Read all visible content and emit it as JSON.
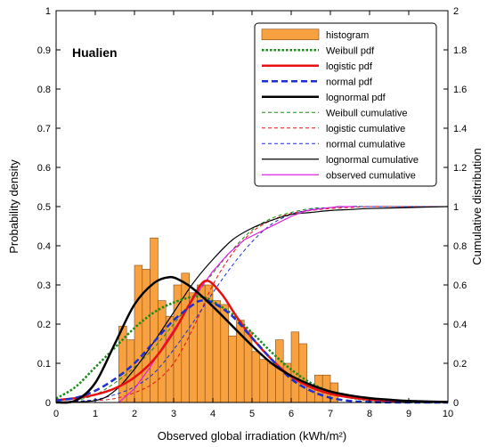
{
  "chart_data": {
    "type": "bar",
    "annotation": "Hualien",
    "xlabel": "Observed  global  irradiation (kWh/m²)",
    "ylabel_left": "Probability  density",
    "ylabel_right": "Cumulative  distribution",
    "xlim": [
      0,
      10
    ],
    "ylim_left": [
      0,
      1
    ],
    "ylim_right": [
      0,
      2
    ],
    "x_ticks": [
      "0",
      "1",
      "2",
      "3",
      "4",
      "5",
      "6",
      "7",
      "8",
      "9",
      "10"
    ],
    "y_ticks_left": [
      "0",
      "0.1",
      "0.2",
      "0.3",
      "0.4",
      "0.5",
      "0.6",
      "0.7",
      "0.8",
      "0.9",
      "1"
    ],
    "y_ticks_right": [
      "0",
      "0.2",
      "0.4",
      "0.6",
      "0.8",
      "1",
      "1.2",
      "1.4",
      "1.6",
      "1.8",
      "2"
    ],
    "grid": false,
    "legend_position": "top-right",
    "histogram": {
      "name": "histogram",
      "color": "#F7A140",
      "bin_width": 0.2,
      "bin_starts": [
        1.6,
        1.8,
        2.0,
        2.2,
        2.4,
        2.6,
        2.8,
        3.0,
        3.2,
        3.4,
        3.6,
        3.8,
        4.0,
        4.2,
        4.4,
        4.6,
        4.8,
        5.0,
        5.2,
        5.4,
        5.6,
        5.8,
        6.0,
        6.2,
        6.4,
        6.6,
        6.8,
        7.0
      ],
      "values": [
        0.195,
        0.16,
        0.35,
        0.34,
        0.42,
        0.26,
        0.22,
        0.3,
        0.33,
        0.28,
        0.3,
        0.3,
        0.26,
        0.25,
        0.17,
        0.21,
        0.18,
        0.13,
        0.11,
        0.1,
        0.16,
        0.1,
        0.18,
        0.15,
        0.04,
        0.07,
        0.07,
        0.05
      ]
    },
    "series": [
      {
        "name": "Weibull pdf",
        "axis": "left",
        "color": "#1A8A1A",
        "style": "dotted-thick",
        "x": [
          0,
          0.5,
          1,
          1.5,
          2,
          2.5,
          3,
          3.5,
          3.8,
          4,
          4.5,
          5,
          5.5,
          6,
          6.5,
          7,
          7.5,
          8,
          8.5,
          9,
          10
        ],
        "values": [
          0.01,
          0.04,
          0.09,
          0.14,
          0.19,
          0.23,
          0.255,
          0.27,
          0.268,
          0.258,
          0.225,
          0.178,
          0.128,
          0.084,
          0.05,
          0.027,
          0.013,
          0.006,
          0.002,
          0.001,
          0
        ]
      },
      {
        "name": "logistic pdf",
        "axis": "left",
        "color": "#E81010",
        "style": "solid-thick",
        "x": [
          0,
          0.5,
          1,
          1.5,
          2,
          2.5,
          3,
          3.4,
          3.8,
          4.2,
          4.6,
          5,
          5.5,
          6,
          6.5,
          7,
          7.5,
          8,
          8.5,
          9,
          10
        ],
        "values": [
          0.006,
          0.011,
          0.02,
          0.036,
          0.064,
          0.11,
          0.18,
          0.25,
          0.31,
          0.28,
          0.22,
          0.165,
          0.11,
          0.066,
          0.039,
          0.022,
          0.013,
          0.007,
          0.004,
          0.002,
          0.001
        ]
      },
      {
        "name": "normal pdf",
        "axis": "left",
        "color": "#1A2FD6",
        "style": "dashed-thick",
        "x": [
          0,
          0.5,
          1,
          1.5,
          2,
          2.5,
          3,
          3.5,
          3.7,
          4,
          4.5,
          5,
          5.5,
          6,
          6.5,
          7,
          7.5,
          8,
          9,
          10
        ],
        "values": [
          0.005,
          0.012,
          0.03,
          0.06,
          0.1,
          0.155,
          0.21,
          0.25,
          0.26,
          0.255,
          0.22,
          0.165,
          0.11,
          0.06,
          0.03,
          0.012,
          0.004,
          0.001,
          0,
          0
        ]
      },
      {
        "name": "lognormal pdf",
        "axis": "left",
        "color": "#000000",
        "style": "solid-thick",
        "x": [
          0,
          0.5,
          1,
          1.5,
          2,
          2.5,
          2.9,
          3.2,
          3.5,
          4,
          4.5,
          5,
          5.5,
          6,
          6.5,
          7,
          7.5,
          8,
          8.5,
          9,
          10
        ],
        "values": [
          0,
          0.005,
          0.05,
          0.15,
          0.25,
          0.305,
          0.32,
          0.31,
          0.29,
          0.245,
          0.195,
          0.145,
          0.1,
          0.068,
          0.045,
          0.028,
          0.018,
          0.011,
          0.007,
          0.004,
          0.001
        ]
      },
      {
        "name": "Weibull cumulative",
        "axis": "right",
        "color": "#1A8A1A",
        "style": "dashed-thin",
        "x": [
          0,
          0.5,
          1,
          1.5,
          2,
          2.5,
          3,
          3.5,
          4,
          4.5,
          5,
          5.5,
          6,
          6.5,
          7,
          7.5,
          8,
          9,
          10
        ],
        "values": [
          0,
          0.01,
          0.04,
          0.1,
          0.18,
          0.28,
          0.4,
          0.53,
          0.66,
          0.78,
          0.88,
          0.94,
          0.97,
          0.99,
          0.995,
          1.0,
          1.0,
          1.0,
          1.0
        ]
      },
      {
        "name": "logistic cumulative",
        "axis": "right",
        "color": "#E81010",
        "style": "dashed-thin",
        "x": [
          0,
          0.5,
          1,
          1.5,
          2,
          2.5,
          3,
          3.5,
          4,
          4.5,
          5,
          5.5,
          6,
          6.5,
          7,
          7.5,
          8,
          9,
          10
        ],
        "values": [
          0.002,
          0.005,
          0.01,
          0.02,
          0.05,
          0.1,
          0.2,
          0.38,
          0.6,
          0.76,
          0.87,
          0.93,
          0.965,
          0.98,
          0.99,
          0.995,
          1.0,
          1.0,
          1.0
        ]
      },
      {
        "name": "normal cumulative",
        "axis": "right",
        "color": "#1A2FD6",
        "style": "dashed-thin",
        "x": [
          0,
          0.5,
          1,
          1.5,
          2,
          2.5,
          3,
          3.5,
          4,
          4.5,
          5,
          5.5,
          6,
          6.5,
          7,
          7.5,
          8,
          9,
          10
        ],
        "values": [
          0.002,
          0.006,
          0.015,
          0.04,
          0.08,
          0.15,
          0.27,
          0.41,
          0.56,
          0.7,
          0.82,
          0.91,
          0.96,
          0.985,
          0.995,
          1.0,
          1.0,
          1.0,
          1.0
        ]
      },
      {
        "name": "lognormal cumulative",
        "axis": "right",
        "color": "#000000",
        "style": "solid-thin",
        "x": [
          0,
          1,
          1.5,
          2,
          2.5,
          3,
          3.5,
          4,
          4.5,
          5,
          5.5,
          6,
          6.5,
          7,
          7.5,
          8,
          9,
          10
        ],
        "values": [
          0,
          0.01,
          0.06,
          0.17,
          0.31,
          0.46,
          0.61,
          0.73,
          0.83,
          0.89,
          0.93,
          0.96,
          0.97,
          0.98,
          0.985,
          0.99,
          0.995,
          1.0
        ]
      },
      {
        "name": "observed cumulative",
        "axis": "right",
        "color": "#E020E0",
        "style": "solid-thin",
        "x": [
          1.6,
          2.0,
          2.4,
          2.8,
          3.2,
          3.6,
          4.0,
          4.4,
          4.8,
          5.2,
          5.6,
          6.0,
          6.4,
          6.8,
          7.2,
          7.6
        ],
        "values": [
          0.0,
          0.07,
          0.18,
          0.31,
          0.43,
          0.56,
          0.67,
          0.76,
          0.83,
          0.87,
          0.91,
          0.95,
          0.98,
          0.99,
          1.0,
          1.0
        ]
      }
    ],
    "legend": [
      "histogram",
      "Weibull pdf",
      "logistic pdf",
      "normal pdf",
      "lognormal pdf",
      "Weibull cumulative",
      "logistic cumulative",
      "normal cumulative",
      "lognormal cumulative",
      "observed cumulative"
    ]
  }
}
